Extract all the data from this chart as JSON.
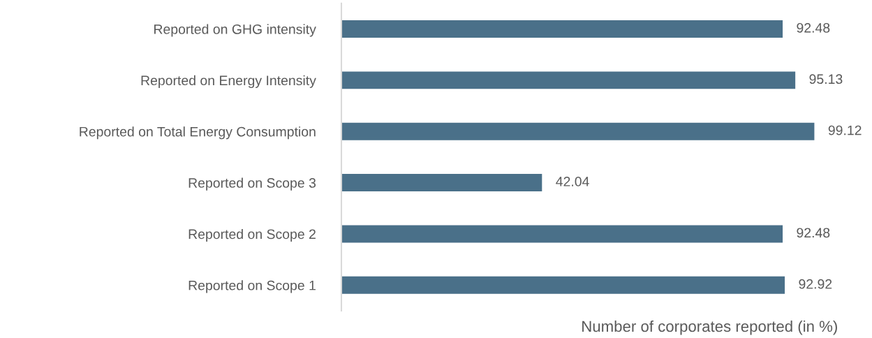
{
  "chart_data": {
    "type": "bar",
    "orientation": "horizontal",
    "xlabel": "Number of corporates reported (in %)",
    "categories": [
      "Reported on GHG intensity",
      "Reported on Energy Intensity",
      "Reported on Total Energy Consumption",
      "Reported on Scope 3",
      "Reported on Scope 2",
      "Reported on Scope 1"
    ],
    "values": [
      92.48,
      95.13,
      99.12,
      42.04,
      92.48,
      92.92
    ],
    "color": "#4a7089",
    "data_labels": true,
    "grid": false,
    "legend": false,
    "tick_labels": "y"
  }
}
